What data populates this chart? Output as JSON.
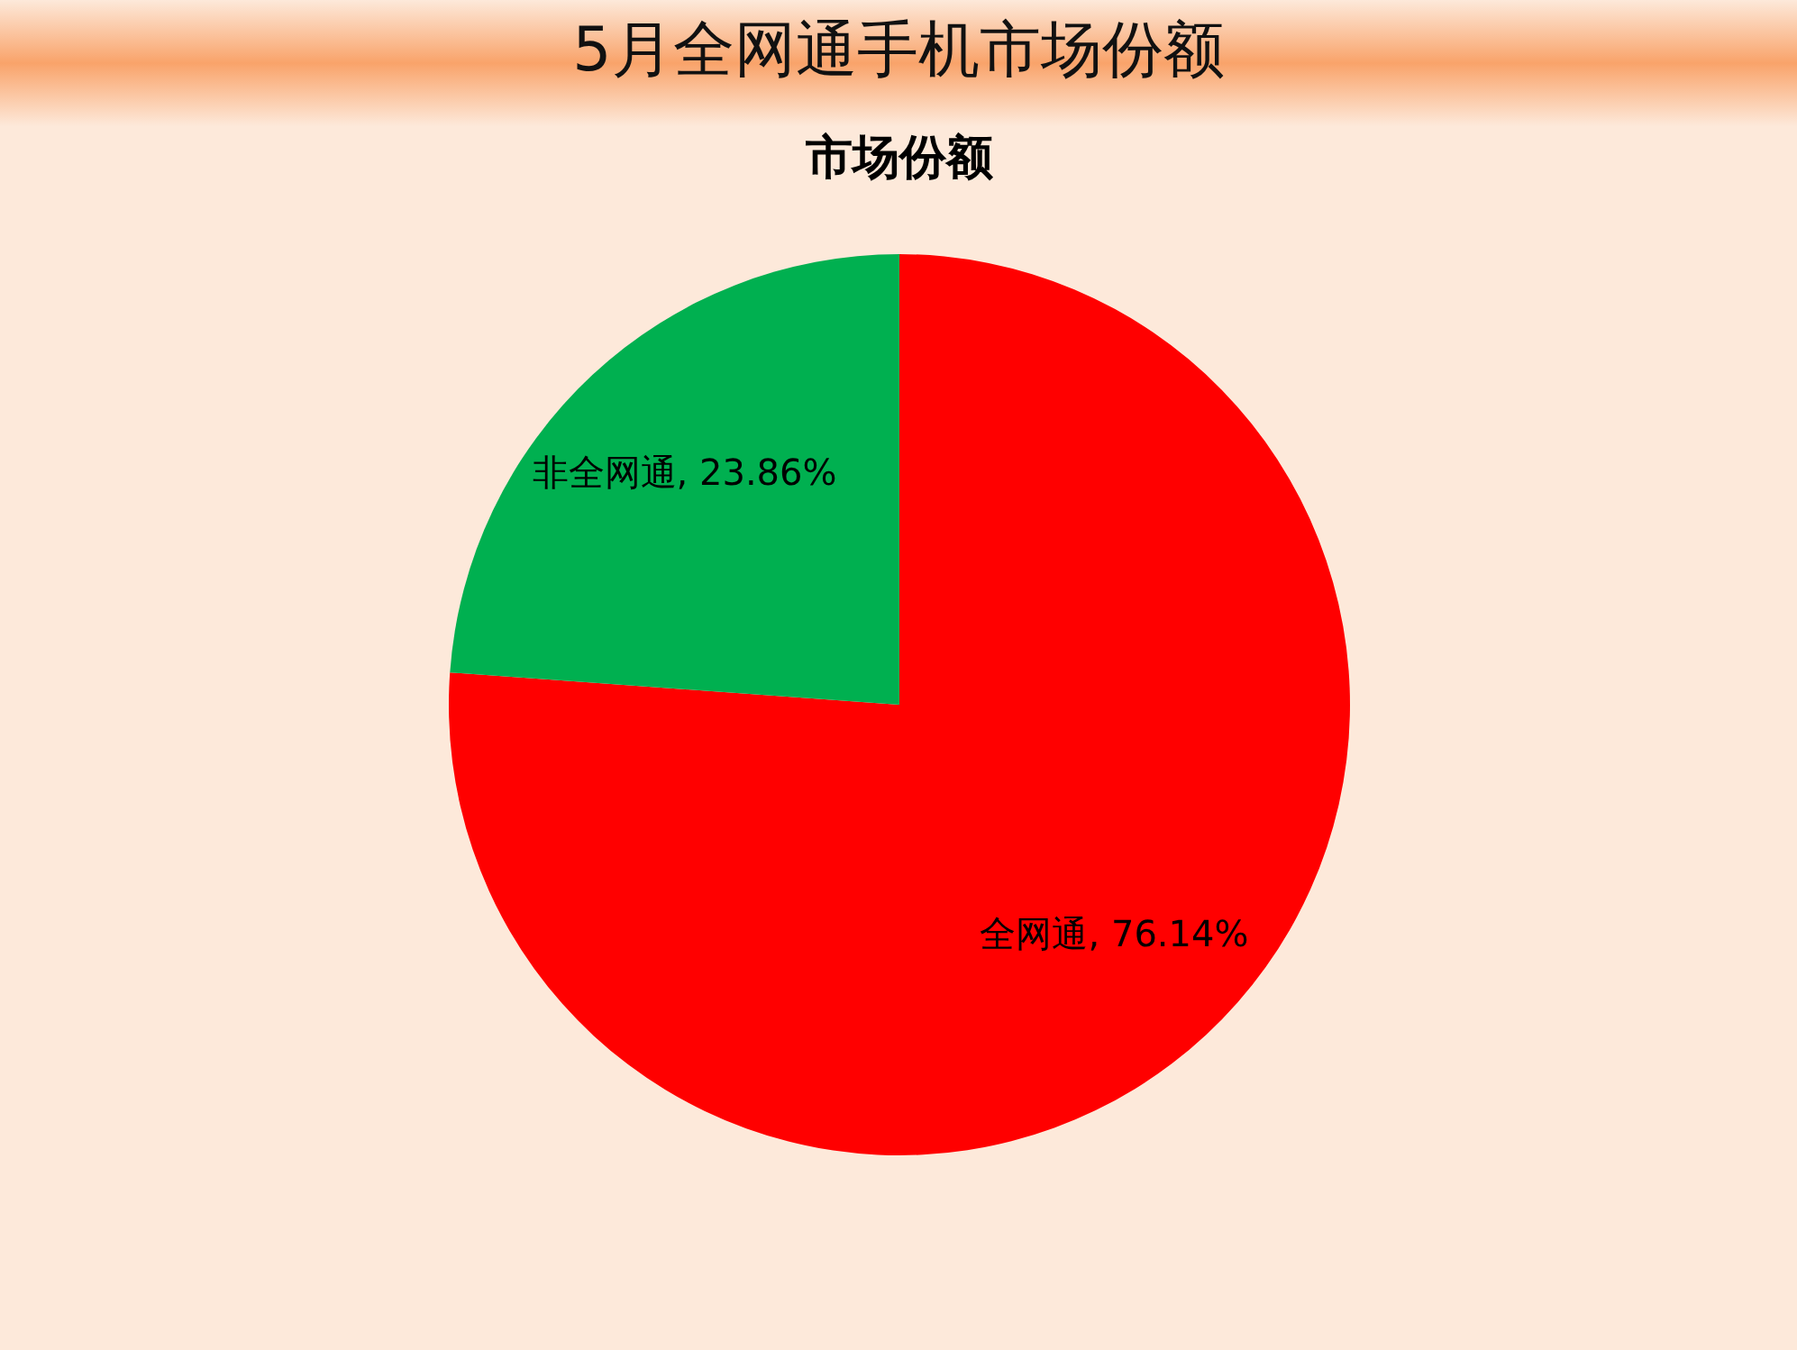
{
  "chart_data": {
    "type": "pie",
    "title": "5月全网通手机市场份额",
    "subtitle": "市场份额",
    "categories": [
      "全网通",
      "非全网通"
    ],
    "values": [
      76.14,
      23.86
    ],
    "colors": [
      "#ff0000",
      "#00b050"
    ],
    "value_labels": [
      "76.14%",
      "23.86%"
    ]
  }
}
